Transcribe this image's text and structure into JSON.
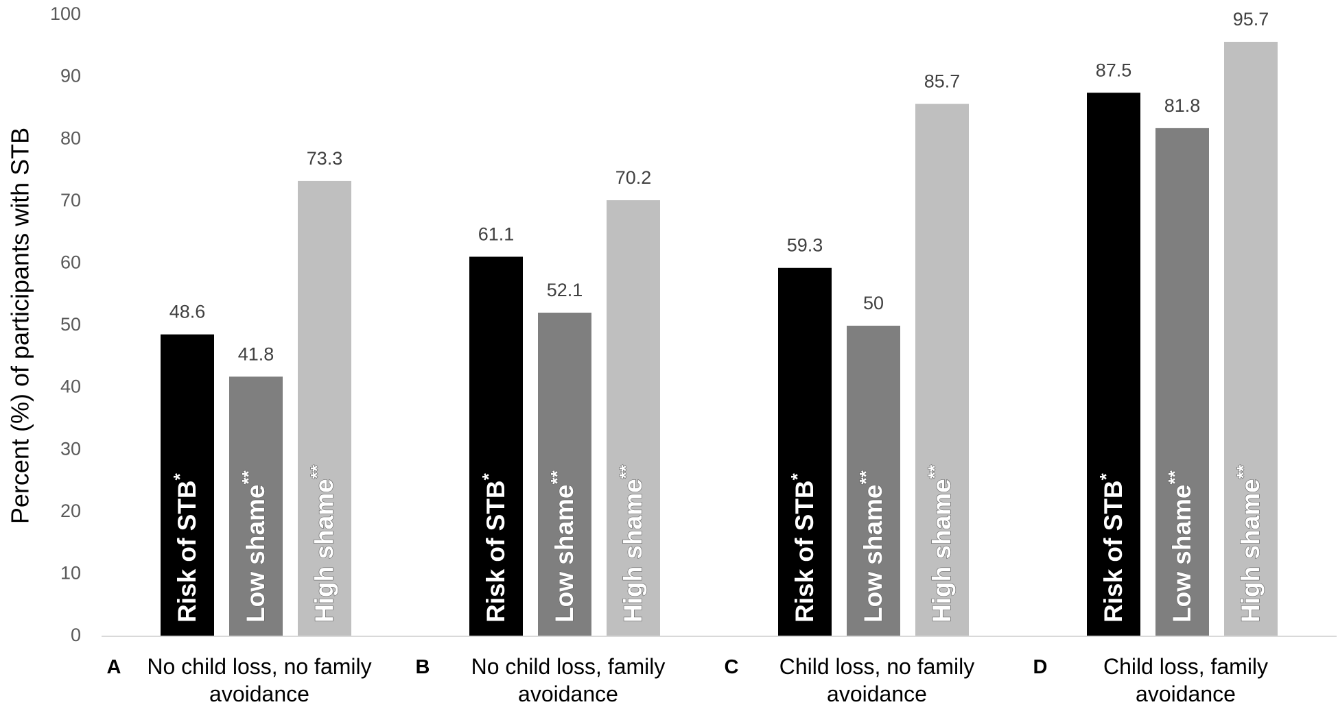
{
  "chart_data": {
    "type": "bar",
    "title": "",
    "xlabel": "",
    "ylabel": "Percent (%) of participants with STB",
    "ylim": [
      0,
      100
    ],
    "yticks": [
      "0",
      "10",
      "20",
      "30",
      "40",
      "50",
      "60",
      "70",
      "80",
      "90",
      "100"
    ],
    "grid": false,
    "legend": "none",
    "categories": [
      {
        "letter": "A",
        "line1": "No child loss, no family",
        "line2": "avoidance"
      },
      {
        "letter": "B",
        "line1": "No child loss, family",
        "line2": "avoidance"
      },
      {
        "letter": "C",
        "line1": "Child loss, no family",
        "line2": "avoidance"
      },
      {
        "letter": "D",
        "line1": "Child loss, family",
        "line2": "avoidance"
      }
    ],
    "series": [
      {
        "name": "Risk of STB",
        "superscript": "*",
        "color": "#000000",
        "values": [
          48.6,
          61.1,
          59.3,
          87.5
        ],
        "labels": [
          "48.6",
          "61.1",
          "59.3",
          "87.5"
        ]
      },
      {
        "name": "Low shame",
        "superscript": "**",
        "color": "#7f7f7f",
        "values": [
          41.8,
          52.1,
          50,
          81.8
        ],
        "labels": [
          "41.8",
          "52.1",
          "50",
          "81.8"
        ]
      },
      {
        "name": "High shame",
        "superscript": "**",
        "color": "#bfbfbf",
        "values": [
          73.3,
          70.2,
          85.7,
          95.7
        ],
        "labels": [
          "73.3",
          "70.2",
          "85.7",
          "95.7"
        ]
      }
    ]
  }
}
